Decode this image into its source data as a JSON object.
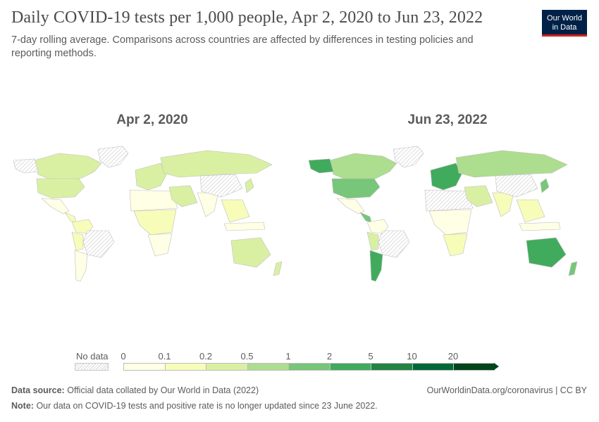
{
  "header": {
    "title": "Daily COVID-19 tests per 1,000 people, Apr 2, 2020 to Jun 23, 2022",
    "subtitle": "7-day rolling average. Comparisons across countries are affected by differences in testing policies and reporting methods.",
    "logo_line1": "Our World",
    "logo_line2": "in Data"
  },
  "maps": [
    {
      "label": "Apr 2, 2020"
    },
    {
      "label": "Jun 23, 2022"
    }
  ],
  "legend": {
    "no_data_label": "No data",
    "ticks": [
      "0",
      "0.1",
      "0.2",
      "0.5",
      "1",
      "2",
      "5",
      "10",
      "20"
    ],
    "colors": [
      "#ffffe5",
      "#f7fcb9",
      "#d9f0a3",
      "#addd8e",
      "#78c679",
      "#41ab5d",
      "#238443",
      "#006837",
      "#00441b"
    ]
  },
  "footer": {
    "source_label": "Data source:",
    "source_text": "Official data collated by Our World in Data (2022)",
    "note_label": "Note:",
    "note_text": "Our data on COVID-19 tests and positive rate is no longer updated since 23 June 2022.",
    "credit": "OurWorldinData.org/coronavirus | CC BY"
  }
}
